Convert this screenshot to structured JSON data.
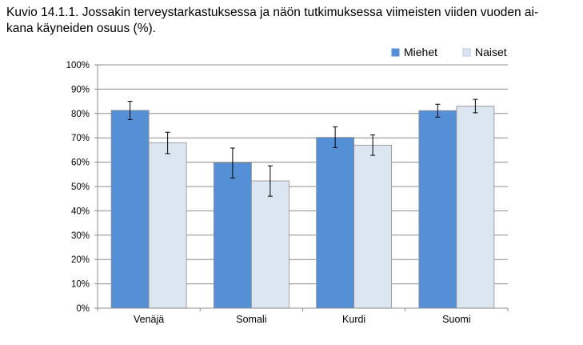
{
  "caption": {
    "line1": "Kuvio 14.1.1. Jossakin terveystarkastuksessa ja näön tutkimuksessa viimeisten viiden vuoden ai-",
    "line2": "kana käyneiden osuus (%)."
  },
  "chart_data": {
    "type": "bar",
    "categories": [
      "Venäjä",
      "Somali",
      "Kurdi",
      "Suomi"
    ],
    "series": [
      {
        "name": "Miehet",
        "color": "#5590d6",
        "values": [
          81.3,
          59.8,
          70.2,
          81.2
        ],
        "error_low": [
          77.5,
          53.5,
          66.0,
          78.5
        ],
        "error_high": [
          85.0,
          65.8,
          74.5,
          83.8
        ]
      },
      {
        "name": "Naiset",
        "color": "#dce6f1",
        "values": [
          68.0,
          52.3,
          67.0,
          83.0
        ],
        "error_low": [
          63.5,
          46.0,
          62.8,
          80.3
        ],
        "error_high": [
          72.3,
          58.5,
          71.2,
          85.8
        ]
      }
    ],
    "yticks": [
      "0%",
      "10%",
      "20%",
      "30%",
      "40%",
      "50%",
      "60%",
      "70%",
      "80%",
      "90%",
      "100%"
    ],
    "ylim": [
      0,
      100
    ],
    "grid": true,
    "legend_position": "top-right"
  }
}
